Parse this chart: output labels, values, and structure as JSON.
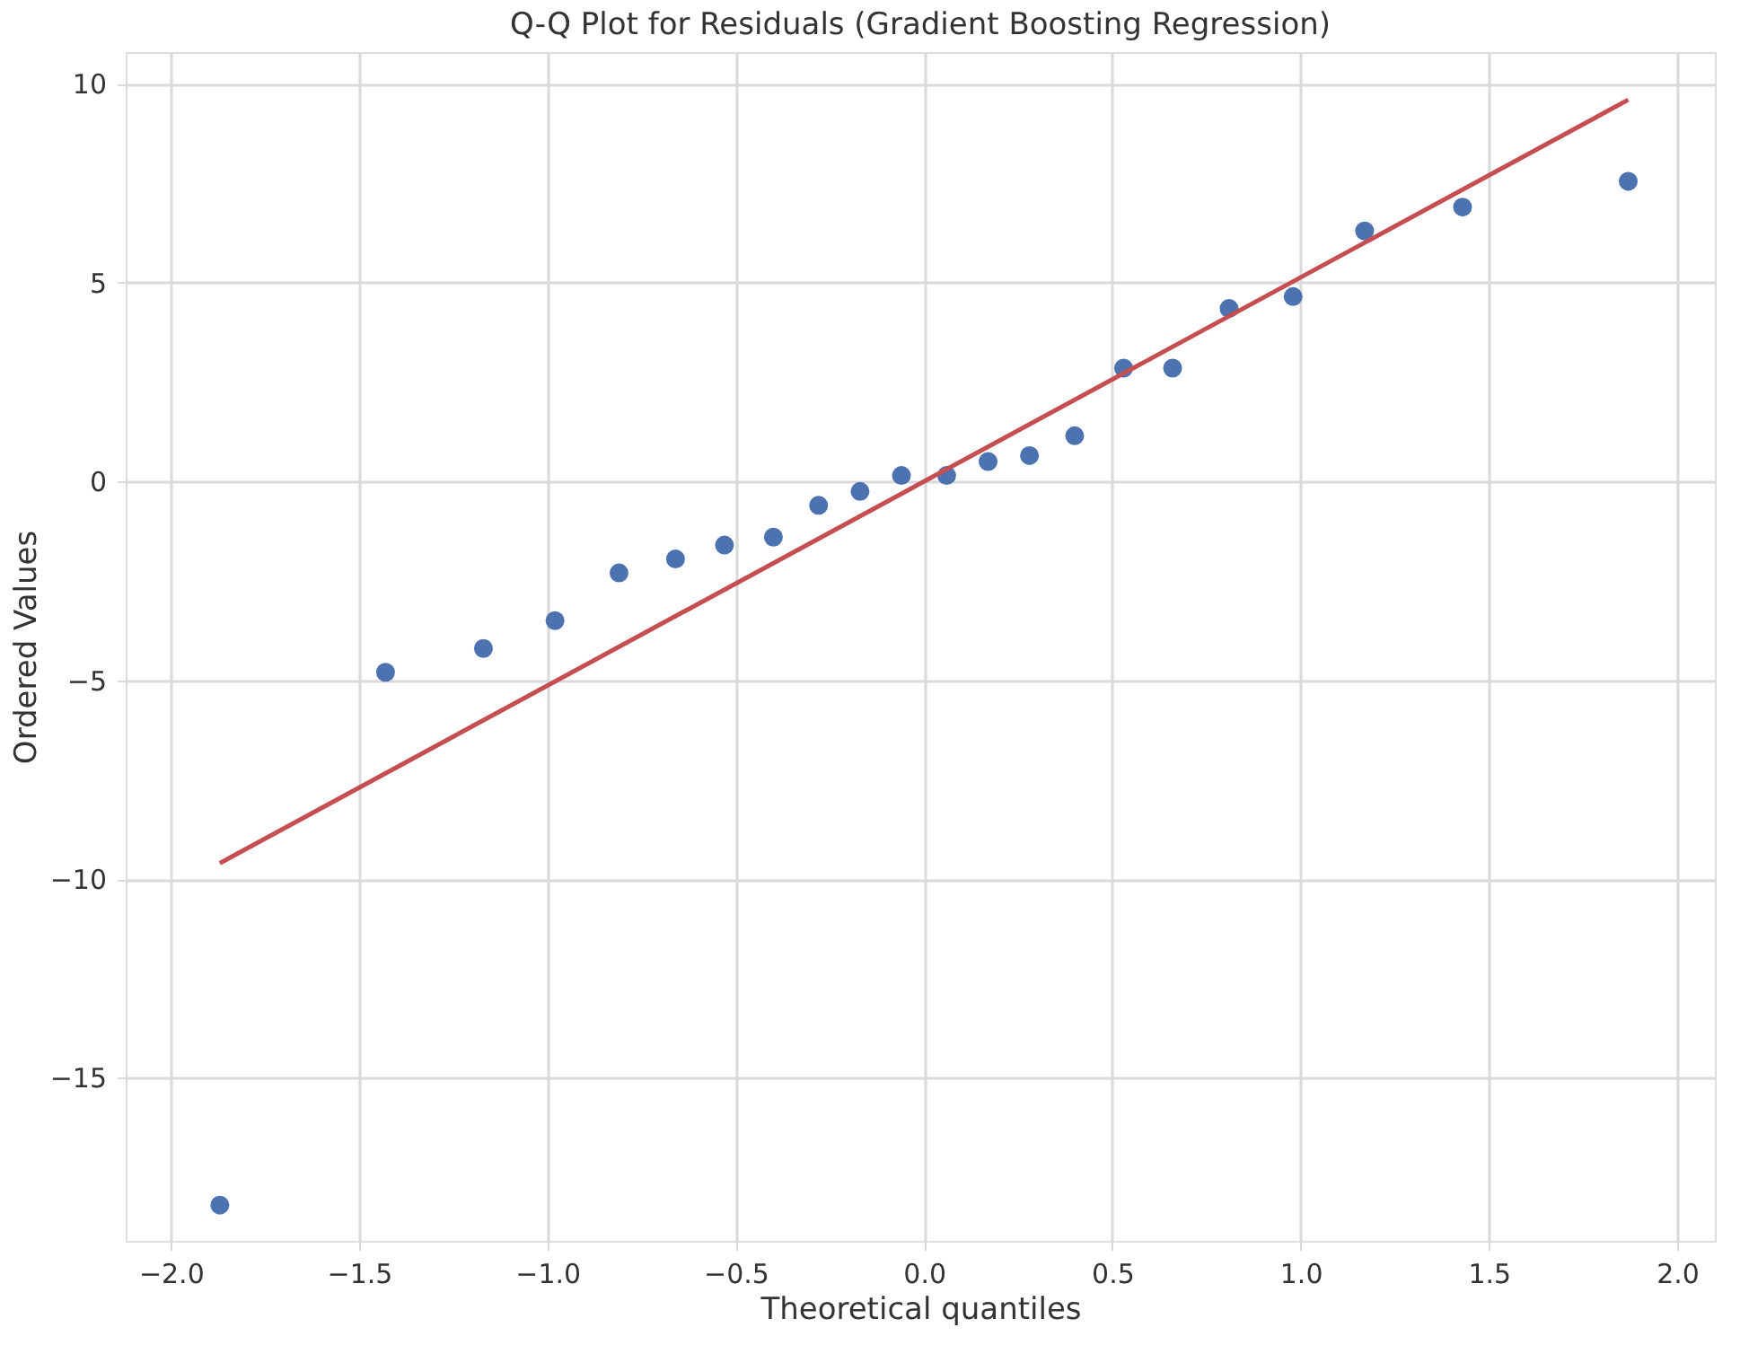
{
  "chart_data": {
    "type": "scatter",
    "title": "Q-Q Plot for Residuals (Gradient Boosting Regression)",
    "xlabel": "Theoretical quantiles",
    "ylabel": "Ordered Values",
    "series": [
      {
        "marker": "circle",
        "color": "#4c72b0",
        "x": [
          -1.87,
          -1.43,
          -1.17,
          -0.98,
          -0.81,
          -0.66,
          -0.53,
          -0.4,
          -0.28,
          -0.17,
          -0.06,
          0.06,
          0.17,
          0.28,
          0.4,
          0.53,
          0.66,
          0.81,
          0.98,
          1.17,
          1.43,
          1.87
        ],
        "values": [
          -18.2,
          -4.8,
          -4.2,
          -3.5,
          -2.3,
          -1.95,
          -1.6,
          -1.4,
          -0.6,
          -0.25,
          0.15,
          0.15,
          0.5,
          0.65,
          1.15,
          2.85,
          2.85,
          4.35,
          4.65,
          6.3,
          6.9,
          7.55
        ]
      },
      {
        "type": "line",
        "color": "#c44e52",
        "x": [
          -1.87,
          1.87
        ],
        "values": [
          -9.6,
          9.6
        ]
      }
    ],
    "xlim": [
      -2.12,
      2.1
    ],
    "xticks": [
      {
        "value": -2.0,
        "label": "−2.0"
      },
      {
        "value": -1.5,
        "label": "−1.5"
      },
      {
        "value": -1.0,
        "label": "−1.0"
      },
      {
        "value": -0.5,
        "label": "−0.5"
      },
      {
        "value": 0.0,
        "label": "0.0"
      },
      {
        "value": 0.5,
        "label": "0.5"
      },
      {
        "value": 1.0,
        "label": "1.0"
      },
      {
        "value": 1.5,
        "label": "1.5"
      },
      {
        "value": 2.0,
        "label": "2.0"
      }
    ],
    "ylim": [
      -19.1,
      10.8
    ],
    "yticks": [
      {
        "value": -15,
        "label": "−15"
      },
      {
        "value": -10,
        "label": "−10"
      },
      {
        "value": -5,
        "label": "−5"
      },
      0,
      5,
      10
    ],
    "grid": true
  }
}
